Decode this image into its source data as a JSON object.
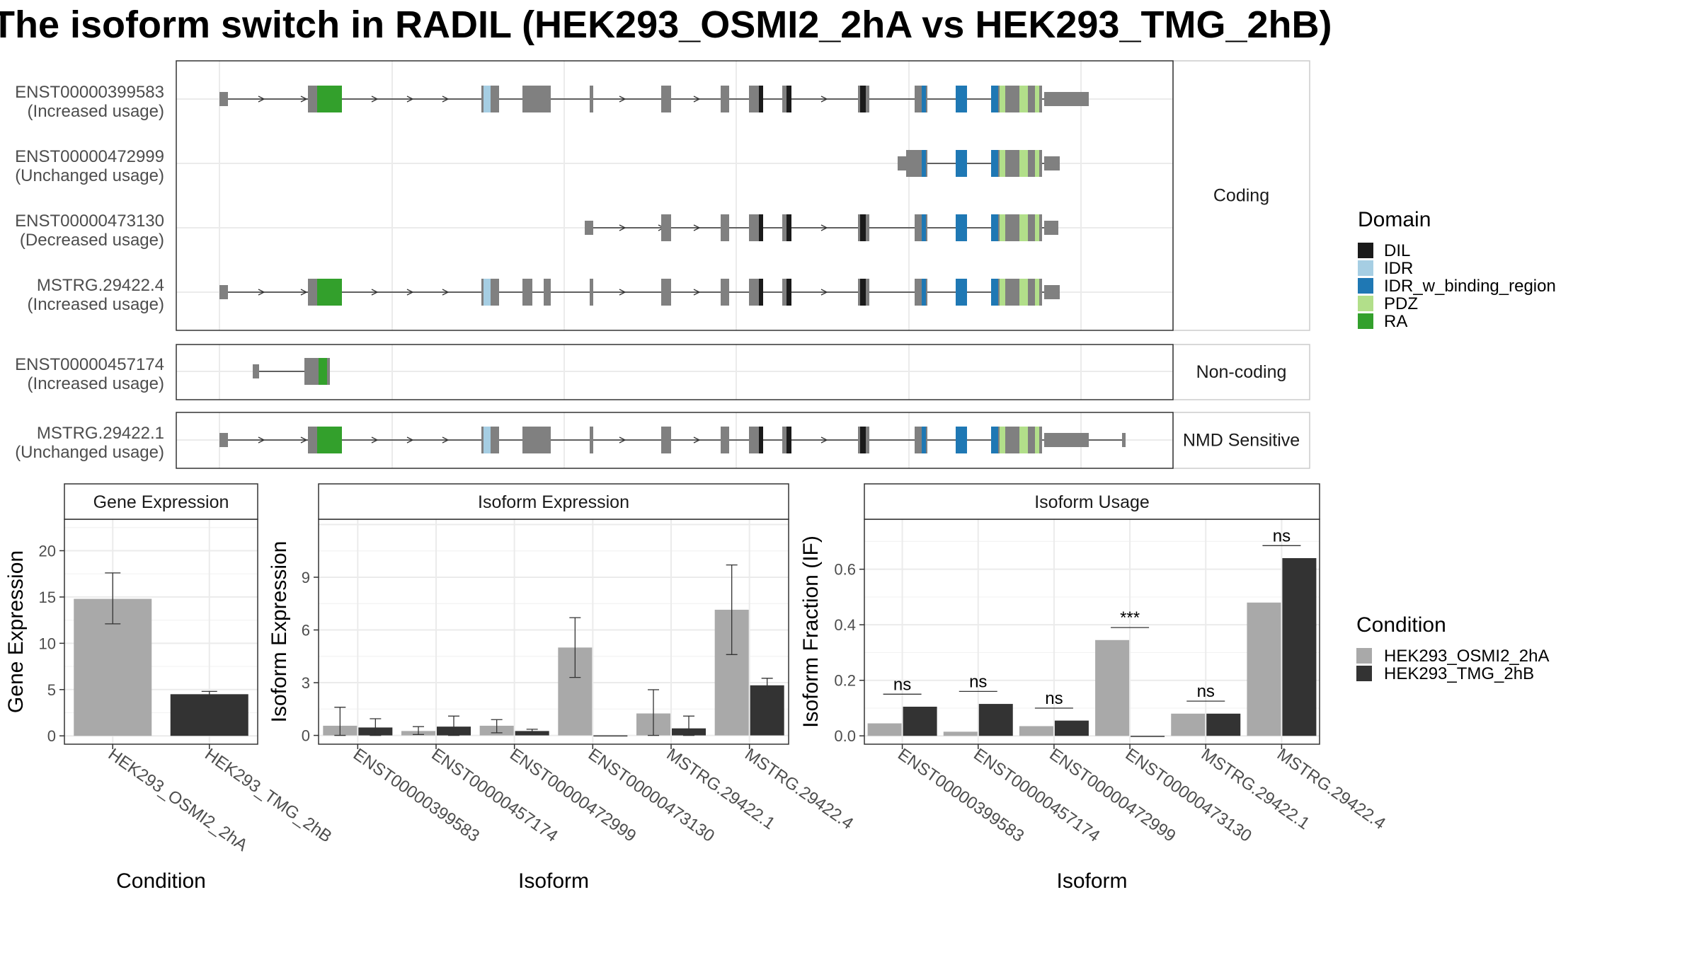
{
  "title": "The isoform switch in RADIL (HEK293_OSMI2_2hA vs HEK293_TMG_2hB)",
  "colors": {
    "DIL": "#1a1a1a",
    "IDR": "#a6cee3",
    "IDR_w_binding_region": "#1f78b4",
    "PDZ": "#b2df8a",
    "RA": "#33a02c",
    "exon": "#808080",
    "cond1": "#a9a9a9",
    "cond2": "#333333"
  },
  "structure": {
    "facets": [
      {
        "label": "Coding",
        "transcripts": [
          {
            "id": "ENST00000399583",
            "usage": "(Increased usage)",
            "model": "full"
          },
          {
            "id": "ENST00000472999",
            "usage": "(Unchanged usage)",
            "model": "short"
          },
          {
            "id": "ENST00000473130",
            "usage": "(Decreased usage)",
            "model": "mid"
          },
          {
            "id": "MSTRG.29422.4",
            "usage": "(Increased usage)",
            "model": "full4"
          }
        ]
      },
      {
        "label": "Non-coding",
        "transcripts": [
          {
            "id": "ENST00000457174",
            "usage": "(Increased usage)",
            "model": "nc"
          }
        ]
      },
      {
        "label": "NMD Sensitive",
        "transcripts": [
          {
            "id": "MSTRG.29422.1",
            "usage": "(Unchanged usage)",
            "model": "nmd"
          }
        ]
      }
    ]
  },
  "legend_domain": {
    "title": "Domain",
    "items": [
      "DIL",
      "IDR",
      "IDR_w_binding_region",
      "PDZ",
      "RA"
    ]
  },
  "legend_condition": {
    "title": "Condition",
    "items": [
      "HEK293_OSMI2_2hA",
      "HEK293_TMG_2hB"
    ]
  },
  "chart_data": [
    {
      "type": "bar",
      "title": "Gene Expression",
      "xlabel": "Condition",
      "ylabel": "Gene Expression",
      "categories": [
        "HEK293_OSMI2_2hA",
        "HEK293_TMG_2hB"
      ],
      "values": [
        14.8,
        4.5
      ],
      "err_low": [
        12.1,
        4.2
      ],
      "err_high": [
        17.6,
        4.8
      ],
      "ylim": [
        -0.9,
        23.4
      ],
      "yticks": [
        0,
        5,
        10,
        15,
        20
      ]
    },
    {
      "type": "bar",
      "title": "Isoform Expression",
      "xlabel": "Isoform",
      "ylabel": "Isoform Expression",
      "categories": [
        "ENST00000399583",
        "ENST00000457174",
        "ENST00000472999",
        "ENST00000473130",
        "MSTRG.29422.1",
        "MSTRG.29422.4"
      ],
      "series": [
        {
          "name": "HEK293_OSMI2_2hA",
          "values": [
            0.55,
            0.25,
            0.55,
            5.0,
            1.25,
            7.15
          ],
          "err_low": [
            0.0,
            0.05,
            0.15,
            3.3,
            0.0,
            4.6
          ],
          "err_high": [
            1.6,
            0.5,
            0.9,
            6.7,
            2.6,
            9.7
          ]
        },
        {
          "name": "HEK293_TMG_2hB",
          "values": [
            0.45,
            0.5,
            0.25,
            0.0,
            0.4,
            2.85
          ],
          "err_low": [
            0.0,
            0.0,
            0.15,
            0.0,
            0.0,
            2.45
          ],
          "err_high": [
            0.95,
            1.1,
            0.35,
            0.0,
            1.1,
            3.25
          ]
        }
      ],
      "ylim": [
        -0.5,
        12.3
      ],
      "yticks": [
        0,
        3,
        6,
        9
      ]
    },
    {
      "type": "bar",
      "title": "Isoform Usage",
      "xlabel": "Isoform",
      "ylabel": "Isoform Fraction (IF)",
      "categories": [
        "ENST00000399583",
        "ENST00000457174",
        "ENST00000472999",
        "ENST00000473130",
        "MSTRG.29422.1",
        "MSTRG.29422.4"
      ],
      "series": [
        {
          "name": "HEK293_OSMI2_2hA",
          "values": [
            0.045,
            0.015,
            0.035,
            0.345,
            0.08,
            0.48
          ]
        },
        {
          "name": "HEK293_TMG_2hB",
          "values": [
            0.105,
            0.115,
            0.055,
            0.0,
            0.08,
            0.64
          ]
        }
      ],
      "significance": [
        "ns",
        "ns",
        "ns",
        "***",
        "ns",
        "ns"
      ],
      "ylim": [
        -0.03,
        0.78
      ],
      "yticks": [
        0.0,
        0.2,
        0.4,
        0.6
      ]
    }
  ]
}
